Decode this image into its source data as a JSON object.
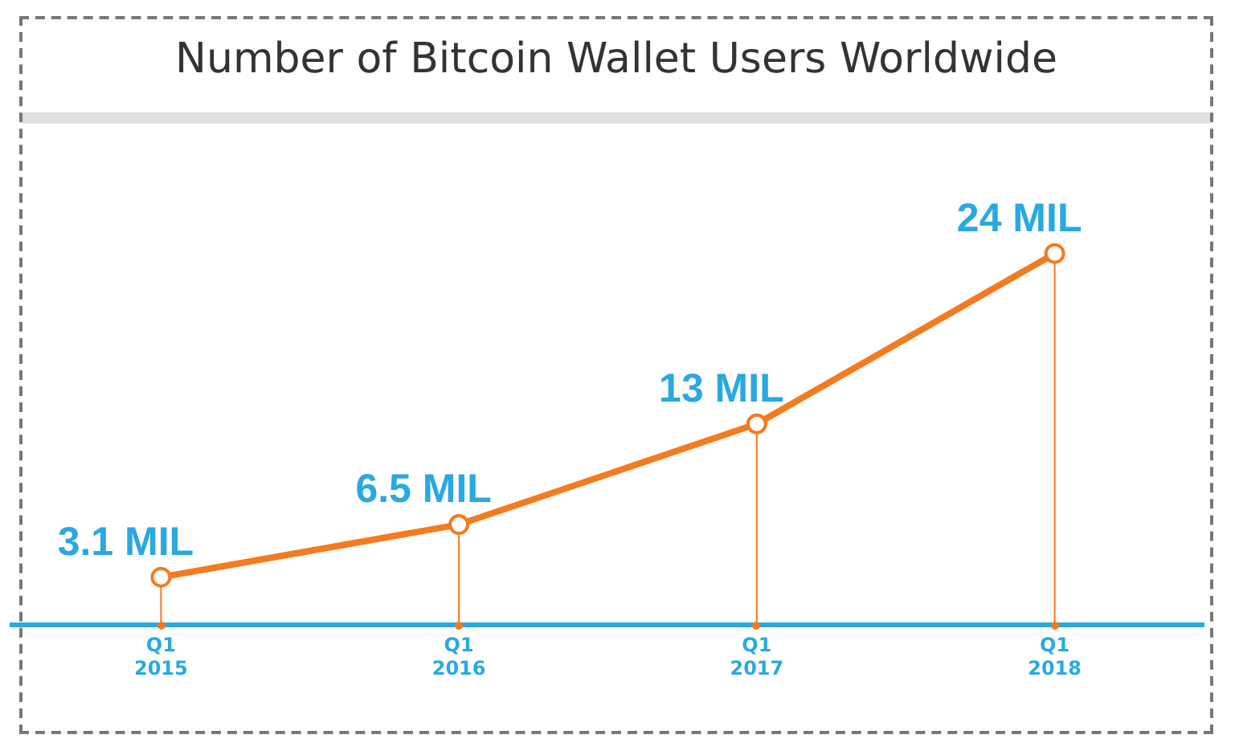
{
  "chart_data": {
    "type": "lollipop",
    "title": "Number of Bitcoin Wallet Users Worldwide",
    "categories": [
      "Q1 2015",
      "Q1 2016",
      "Q1 2017",
      "Q1 2018"
    ],
    "series": [
      {
        "color": "#f47b20",
        "values": [
          3.1,
          6.5,
          13,
          24
        ],
        "value_labels": [
          "3.1 MIL",
          "6.5 MIL",
          "13 MIL",
          "24 MIL"
        ]
      }
    ],
    "tick_labels": "x",
    "grid": false,
    "legend": false,
    "marker": "circle"
  }
}
